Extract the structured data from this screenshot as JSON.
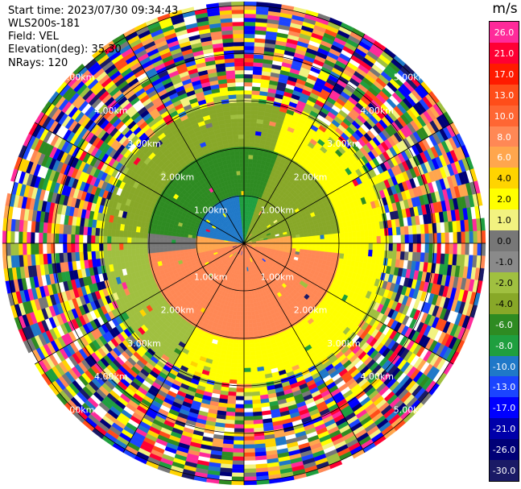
{
  "header": {
    "start_time": "Start time: 2023/07/30 09:34:43",
    "instrument": "WLS200s-181",
    "field": "Field: VEL",
    "elevation": "Elevation(deg): 35.30",
    "nrays": "NRays: 120"
  },
  "range_labels": [
    "1.00km",
    "2.00km",
    "3.00km",
    "4.00km",
    "5.00km"
  ],
  "colorbar": {
    "unit": "m/s",
    "ticks": [
      "26.0",
      "21.0",
      "17.0",
      "13.0",
      "10.0",
      "8.0",
      "6.0",
      "4.0",
      "2.0",
      "1.0",
      "0.0",
      "-1.0",
      "-2.0",
      "-4.0",
      "-6.0",
      "-8.0",
      "-10.0",
      "-13.0",
      "-17.0",
      "-21.0",
      "-26.0",
      "-30.0"
    ],
    "colors": [
      "#ff2a9a",
      "#ff0033",
      "#ff1a00",
      "#ff4d1a",
      "#ff6633",
      "#ff8855",
      "#ffa64d",
      "#ffd400",
      "#ffff00",
      "#f2f280",
      "#777777",
      "#8a8a8a",
      "#a0c040",
      "#88a828",
      "#2e8b22",
      "#1f9f3f",
      "#1f78c8",
      "#1b44ff",
      "#0000ff",
      "#0000aa",
      "#000077",
      "#1a1a66"
    ]
  }
}
